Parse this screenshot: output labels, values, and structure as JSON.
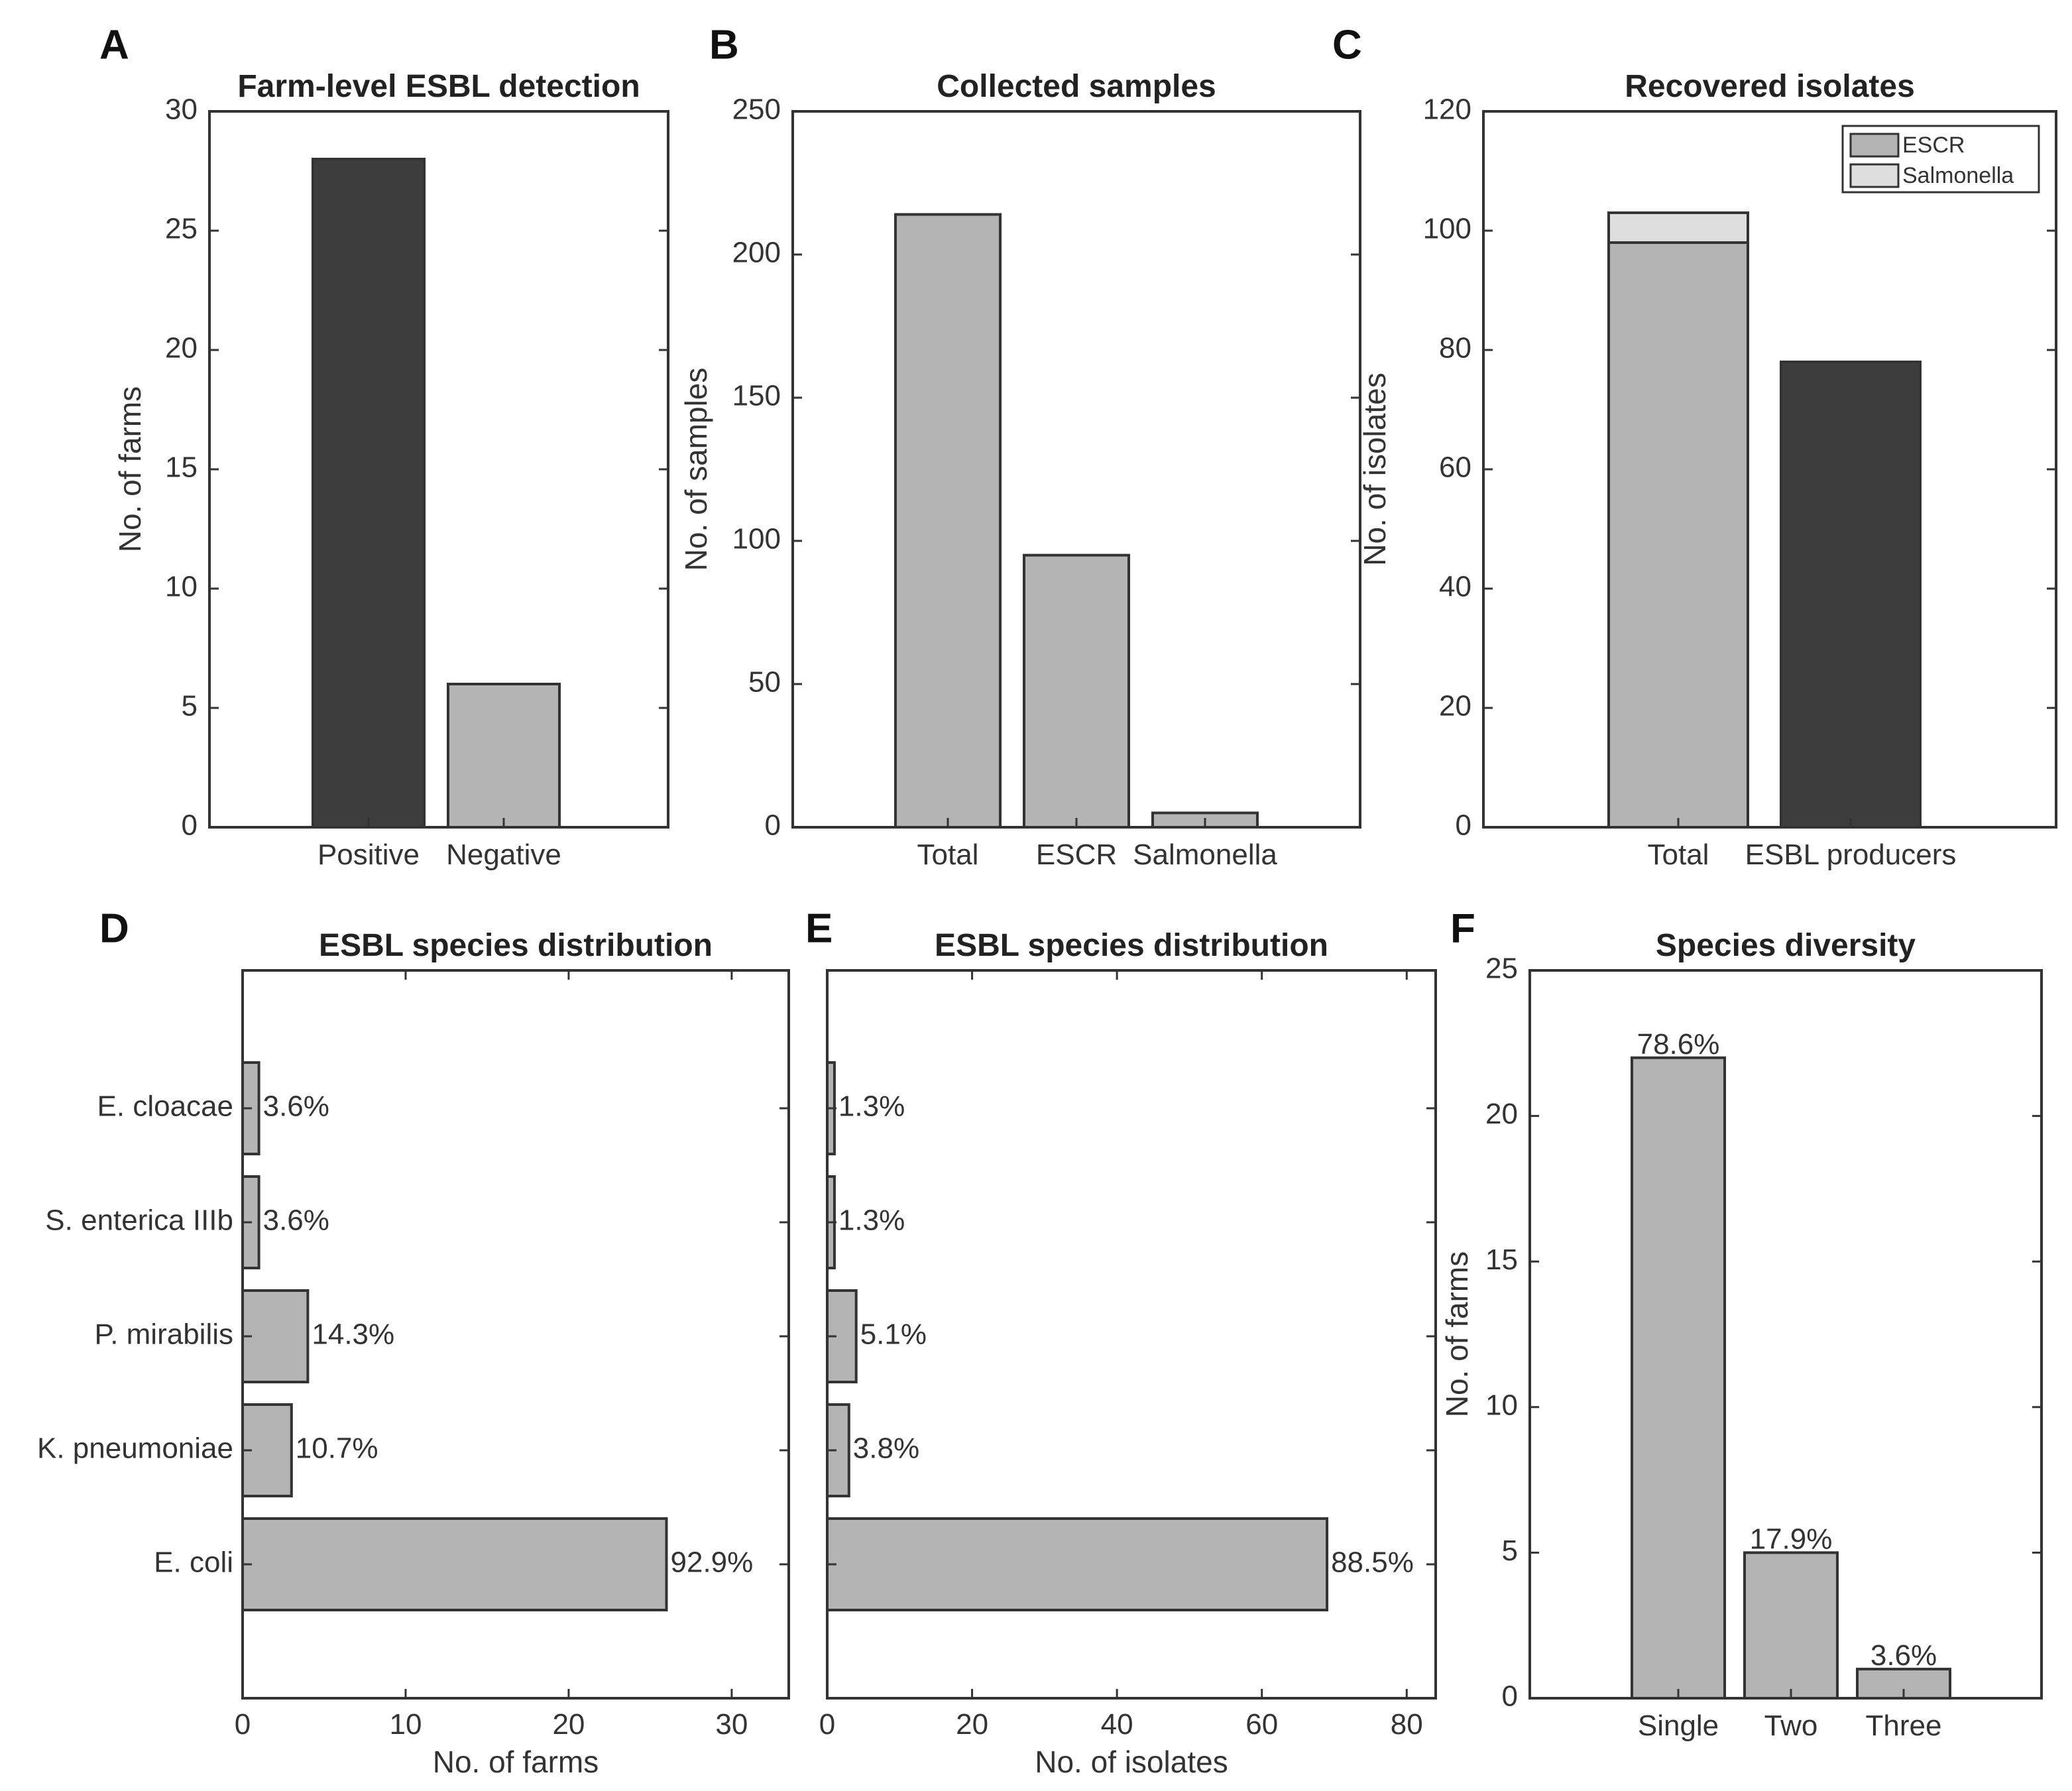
{
  "colors": {
    "light_gray": "#b4b4b4",
    "lighter_gray": "#dedede",
    "dark_gray": "#3d3d3d",
    "axis": "#333333"
  },
  "chart_data": [
    {
      "id": "A",
      "letter": "A",
      "type": "bar",
      "orientation": "vertical",
      "title": "Farm-level ESBL detection",
      "xlabel": "",
      "ylabel": "No. of farms",
      "categories": [
        "Positive",
        "Negative"
      ],
      "values": [
        28,
        6
      ],
      "bar_colors": [
        "dark_gray",
        "light_gray"
      ],
      "ylim": [
        0,
        30
      ],
      "yticks": [
        0,
        5,
        10,
        15,
        20,
        25,
        30
      ],
      "grid": false
    },
    {
      "id": "B",
      "letter": "B",
      "type": "bar",
      "orientation": "vertical",
      "title": "Collected samples",
      "xlabel": "",
      "ylabel": "No. of samples",
      "categories": [
        "Total",
        "ESCR",
        "Salmonella"
      ],
      "values": [
        214,
        95,
        5
      ],
      "bar_colors": [
        "light_gray",
        "light_gray",
        "light_gray"
      ],
      "ylim": [
        0,
        250
      ],
      "yticks": [
        0,
        50,
        100,
        150,
        200,
        250
      ],
      "grid": false
    },
    {
      "id": "C",
      "letter": "C",
      "type": "bar",
      "stacked": true,
      "orientation": "vertical",
      "title": "Recovered isolates",
      "xlabel": "",
      "ylabel": "No. of isolates",
      "categories": [
        "Total",
        "ESBL producers"
      ],
      "series": [
        {
          "name": "ESCR",
          "values": [
            98,
            0
          ],
          "color": "light_gray"
        },
        {
          "name": "Salmonella",
          "values": [
            5,
            0
          ],
          "color": "lighter_gray"
        },
        {
          "name": "ESBL producers",
          "values": [
            0,
            78
          ],
          "color": "dark_gray",
          "in_legend": false
        }
      ],
      "legend": [
        "ESCR",
        "Salmonella"
      ],
      "legend_position": "top-right",
      "ylim": [
        0,
        120
      ],
      "yticks": [
        0,
        20,
        40,
        60,
        80,
        100,
        120
      ],
      "grid": false
    },
    {
      "id": "D",
      "letter": "D",
      "type": "bar",
      "orientation": "horizontal",
      "title": "ESBL species distribution",
      "xlabel": "No. of farms",
      "ylabel": "",
      "categories": [
        "E. cloacae",
        "S. enterica IIIb",
        "P. mirabilis",
        "K. pneumoniae",
        "E. coli"
      ],
      "values": [
        1,
        1,
        4,
        3,
        26
      ],
      "data_labels": [
        "3.6%",
        "3.6%",
        "14.3%",
        "10.7%",
        "92.9%"
      ],
      "xlim": [
        0,
        33.5
      ],
      "xticks": [
        0,
        10,
        20,
        30
      ],
      "grid": false
    },
    {
      "id": "E",
      "letter": "E",
      "type": "bar",
      "orientation": "horizontal",
      "title": "ESBL species distribution",
      "xlabel": "No. of isolates",
      "ylabel": "",
      "categories": [
        "E. cloacae",
        "S. enterica IIIb",
        "P. mirabilis",
        "K. pneumoniae",
        "E. coli"
      ],
      "values": [
        1,
        1,
        4,
        3,
        69
      ],
      "data_labels": [
        "1.3%",
        "1.3%",
        "5.1%",
        "3.8%",
        "88.5%"
      ],
      "xlim": [
        0,
        84
      ],
      "xticks": [
        0,
        20,
        40,
        60,
        80
      ],
      "grid": false
    },
    {
      "id": "F",
      "letter": "F",
      "type": "bar",
      "orientation": "vertical",
      "title": "Species diversity",
      "xlabel": "",
      "ylabel": "No. of farms",
      "categories": [
        "Single",
        "Two",
        "Three"
      ],
      "values": [
        22,
        5,
        1
      ],
      "data_labels": [
        "78.6%",
        "17.9%",
        "3.6%"
      ],
      "ylim": [
        0,
        25
      ],
      "yticks": [
        0,
        5,
        10,
        15,
        20,
        25
      ],
      "grid": false
    }
  ]
}
